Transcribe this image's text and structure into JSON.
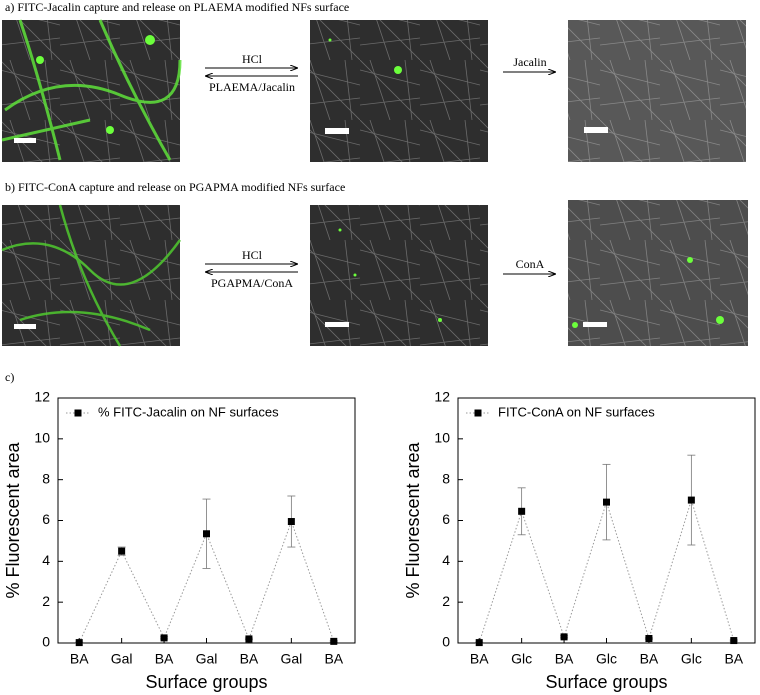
{
  "panels": [
    {
      "title": "a) FITC-Jacalin capture and release on PLAEMA modified NFs surface",
      "forward": "HCl",
      "backward": "PLAEMA/Jacalin",
      "release": "Jacalin"
    },
    {
      "title": "b) FITC-ConA capture and release on PGAPMA modified NFs surface",
      "forward": "HCl",
      "backward": "PGAPMA/ConA",
      "release": "ConA"
    }
  ],
  "panel_c": "c)",
  "chart_data": [
    {
      "type": "line",
      "y_label": "% Fluorescent area",
      "x_label": "Surface groups",
      "categories": [
        "BA",
        "Gal",
        "BA",
        "Gal",
        "BA",
        "Gal",
        "BA"
      ],
      "series": [
        {
          "name": "% FITC-Jacalin on NF surfaces",
          "color": "#000000",
          "values": [
            0.02,
            4.5,
            0.25,
            5.35,
            0.2,
            5.95,
            0.08
          ],
          "errors": [
            0.02,
            0.2,
            0.05,
            1.7,
            0.04,
            1.25,
            0.03
          ]
        }
      ],
      "ylim": [
        0,
        12
      ],
      "yticks": [
        0,
        2,
        4,
        6,
        8,
        10,
        12
      ]
    },
    {
      "type": "line",
      "y_label": "% Fluorescent area",
      "x_label": "Surface groups",
      "categories": [
        "BA",
        "Glc",
        "BA",
        "Glc",
        "BA",
        "Glc",
        "BA"
      ],
      "series": [
        {
          "name": "FITC-ConA on NF surfaces",
          "color": "#000000",
          "values": [
            0.02,
            6.45,
            0.3,
            6.9,
            0.22,
            7.0,
            0.12
          ],
          "errors": [
            0.02,
            1.15,
            0.05,
            1.85,
            0.03,
            2.2,
            0.03
          ]
        }
      ],
      "ylim": [
        0,
        12
      ],
      "yticks": [
        0,
        2,
        4,
        6,
        8,
        10,
        12
      ]
    }
  ]
}
